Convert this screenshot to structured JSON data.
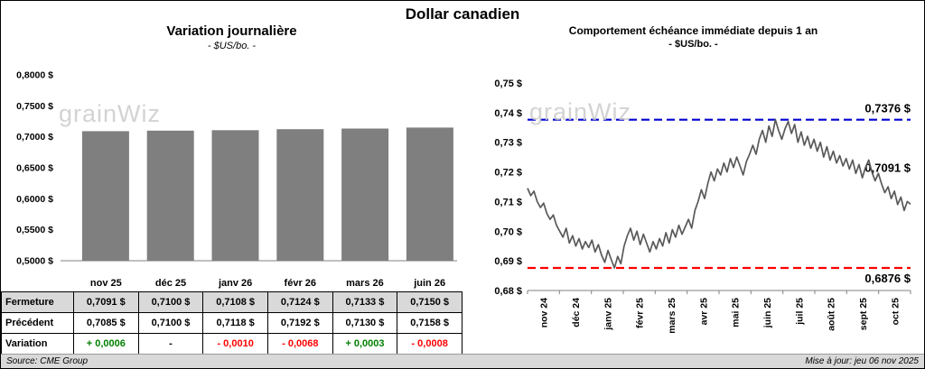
{
  "title": "Dollar canadien",
  "watermark": "grainWiz",
  "table": {
    "row_labels": [
      "Fermeture",
      "Précédent",
      "Variation"
    ],
    "fermeture": [
      "0,7091 $",
      "0,7100 $",
      "0,7108 $",
      "0,7124 $",
      "0,7133 $",
      "0,7150 $"
    ],
    "precedent": [
      "0,7085 $",
      "0,7100 $",
      "0,7118 $",
      "0,7192 $",
      "0,7130 $",
      "0,7158 $"
    ],
    "variation": [
      "+ 0,0006",
      "-",
      "- 0,0010",
      "- 0,0068",
      "+ 0,0003",
      "- 0,0008"
    ],
    "variation_colors": [
      "#008000",
      "#000000",
      "#FF0000",
      "#FF0000",
      "#008000",
      "#FF0000"
    ]
  },
  "footer": {
    "source": "Source: CME Group",
    "updated": "Mise à jour: jeu 06 nov 2025"
  },
  "colors": {
    "bar": "#7F7F7F",
    "line": "#595959",
    "max_line": "#0000D0",
    "min_line": "#FF0000",
    "row_shade": "#D9D9D9",
    "positive": "#008000",
    "negative": "#FF0000"
  },
  "chart_data": [
    {
      "type": "bar",
      "title": "Variation  journalière",
      "subtitle": "- $US/bo. -",
      "categories": [
        "nov 25",
        "déc 25",
        "janv 26",
        "févr 26",
        "mars 26",
        "juin 26"
      ],
      "values": [
        0.7091,
        0.71,
        0.7108,
        0.7124,
        0.7133,
        0.715
      ],
      "ylim": [
        0.5,
        0.8
      ],
      "ytick_step": 0.05,
      "ytick_format": "0,0000 $",
      "grid": false,
      "legend": "none"
    },
    {
      "type": "line",
      "title": "Comportement échéance immédiate depuis 1 an",
      "subtitle": "- $US/bo. -",
      "x_labels": [
        "nov 24",
        "déc 24",
        "janv 25",
        "févr 25",
        "mars 25",
        "avr 25",
        "mai 25",
        "juin 25",
        "juil 25",
        "août 25",
        "sept 25",
        "oct 25"
      ],
      "values": [
        0.7145,
        0.712,
        0.7135,
        0.71,
        0.708,
        0.7095,
        0.706,
        0.704,
        0.7055,
        0.702,
        0.7,
        0.698,
        0.701,
        0.696,
        0.6985,
        0.695,
        0.6975,
        0.694,
        0.6965,
        0.6945,
        0.697,
        0.693,
        0.6955,
        0.692,
        0.6895,
        0.6935,
        0.6905,
        0.6876,
        0.6915,
        0.689,
        0.695,
        0.6985,
        0.701,
        0.697,
        0.7,
        0.6955,
        0.699,
        0.696,
        0.693,
        0.6965,
        0.694,
        0.6975,
        0.695,
        0.6995,
        0.696,
        0.7005,
        0.698,
        0.702,
        0.699,
        0.7015,
        0.704,
        0.701,
        0.707,
        0.71,
        0.714,
        0.711,
        0.716,
        0.72,
        0.717,
        0.721,
        0.719,
        0.723,
        0.72,
        0.7245,
        0.7215,
        0.725,
        0.722,
        0.719,
        0.7235,
        0.726,
        0.729,
        0.726,
        0.731,
        0.734,
        0.73,
        0.7355,
        0.732,
        0.7376,
        0.734,
        0.731,
        0.7345,
        0.737,
        0.733,
        0.736,
        0.73,
        0.7335,
        0.729,
        0.732,
        0.728,
        0.731,
        0.727,
        0.73,
        0.725,
        0.7285,
        0.724,
        0.727,
        0.723,
        0.7255,
        0.722,
        0.7245,
        0.721,
        0.724,
        0.7195,
        0.7225,
        0.718,
        0.7215,
        0.724,
        0.72,
        0.717,
        0.7195,
        0.716,
        0.713,
        0.715,
        0.711,
        0.7135,
        0.709,
        0.7115,
        0.707,
        0.71,
        0.7091
      ],
      "ylim": [
        0.68,
        0.75
      ],
      "ytick_step": 0.01,
      "grid": false,
      "legend": "none",
      "annotations": [
        {
          "type": "hline",
          "value": 0.7376,
          "label": "0,7376 $",
          "color": "#0000D0",
          "dash": true,
          "label_pos": "above"
        },
        {
          "type": "hline",
          "value": 0.6876,
          "label": "0,6876 $",
          "color": "#FF0000",
          "dash": true,
          "label_pos": "below"
        },
        {
          "type": "last",
          "value": 0.7091,
          "label": "0,7091 $",
          "color": "#000000"
        }
      ]
    }
  ]
}
